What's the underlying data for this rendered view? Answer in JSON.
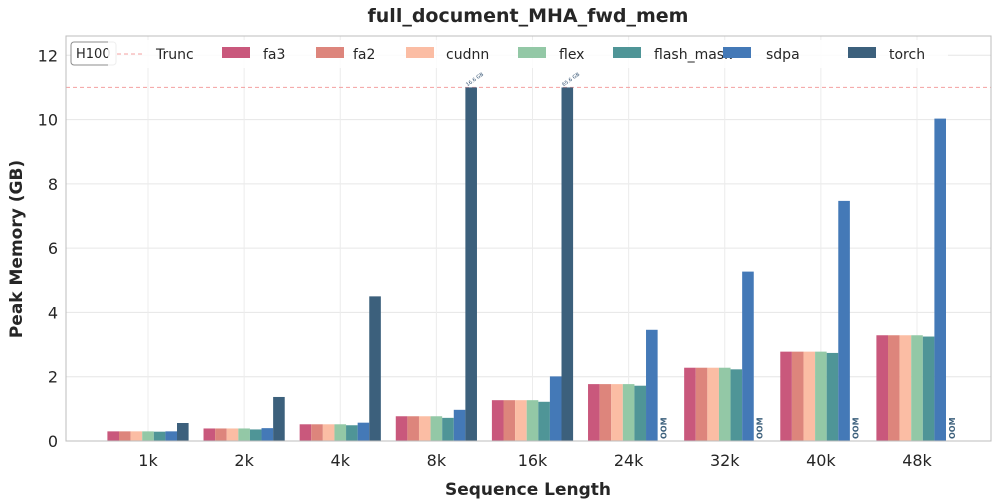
{
  "chart_data": {
    "type": "bar",
    "title": "full_document_MHA_fwd_mem",
    "xlabel": "Sequence Length",
    "ylabel": "Peak Memory (GB)",
    "ylim": [
      0,
      12.6
    ],
    "yticks": [
      0,
      2,
      4,
      6,
      8,
      10,
      12
    ],
    "grid": true,
    "legend_position": "top",
    "badge": "H100",
    "truncation": {
      "label": "Trunc",
      "value": 11.0,
      "color": "#f4a0a0"
    },
    "categories": [
      "1k",
      "2k",
      "4k",
      "8k",
      "16k",
      "24k",
      "32k",
      "40k",
      "48k"
    ],
    "series": [
      {
        "name": "fa3",
        "color": "#c9587c",
        "values": [
          0.3,
          0.39,
          0.52,
          0.77,
          1.27,
          1.77,
          2.28,
          2.78,
          3.29
        ]
      },
      {
        "name": "fa2",
        "color": "#dd857c",
        "values": [
          0.3,
          0.39,
          0.52,
          0.77,
          1.27,
          1.77,
          2.28,
          2.78,
          3.29
        ]
      },
      {
        "name": "cudnn",
        "color": "#fbbda4",
        "values": [
          0.3,
          0.39,
          0.52,
          0.77,
          1.27,
          1.77,
          2.28,
          2.78,
          3.29
        ]
      },
      {
        "name": "flex",
        "color": "#93c8a6",
        "values": [
          0.3,
          0.39,
          0.52,
          0.77,
          1.27,
          1.77,
          2.28,
          2.78,
          3.29
        ]
      },
      {
        "name": "flash_mask",
        "color": "#4f9597",
        "values": [
          0.29,
          0.36,
          0.49,
          0.72,
          1.22,
          1.72,
          2.23,
          2.74,
          3.25
        ]
      },
      {
        "name": "sdpa",
        "color": "#4479b7",
        "values": [
          0.3,
          0.4,
          0.57,
          0.97,
          2.01,
          3.46,
          5.27,
          7.47,
          10.03
        ]
      },
      {
        "name": "torch",
        "color": "#3c607c",
        "values": [
          0.56,
          1.37,
          4.5,
          11.0,
          11.0,
          null,
          null,
          null,
          null
        ]
      }
    ],
    "annotations": [
      {
        "category": "8k",
        "series": "torch",
        "text": "16.6 GB"
      },
      {
        "category": "16k",
        "series": "torch",
        "text": "65.6 GB"
      },
      {
        "category": "24k",
        "series": "torch",
        "text": "OOM"
      },
      {
        "category": "32k",
        "series": "torch",
        "text": "OOM"
      },
      {
        "category": "40k",
        "series": "torch",
        "text": "OOM"
      },
      {
        "category": "48k",
        "series": "torch",
        "text": "OOM"
      }
    ]
  }
}
